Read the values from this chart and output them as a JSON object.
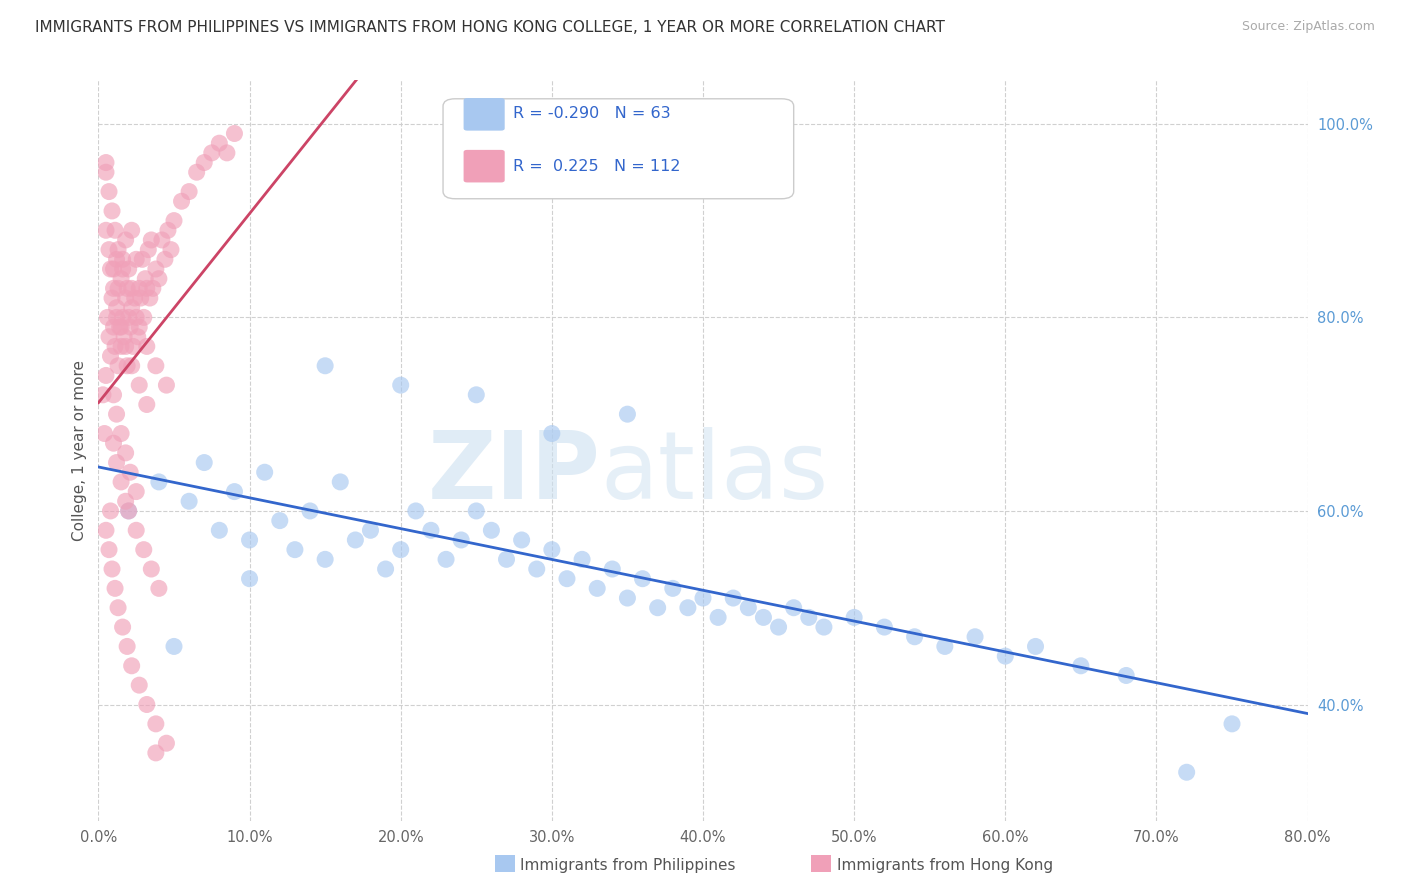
{
  "title": "IMMIGRANTS FROM PHILIPPINES VS IMMIGRANTS FROM HONG KONG COLLEGE, 1 YEAR OR MORE CORRELATION CHART",
  "source": "Source: ZipAtlas.com",
  "xlabel_blue": "Immigrants from Philippines",
  "xlabel_pink": "Immigrants from Hong Kong",
  "ylabel": "College, 1 year or more",
  "watermark_big": "ZIP",
  "watermark_small": "atlas",
  "blue_r": "-0.290",
  "blue_n": "63",
  "pink_r": "0.225",
  "pink_n": "112",
  "blue_color": "#a8c8f0",
  "pink_color": "#f0a0b8",
  "blue_line_color": "#3366cc",
  "pink_line_color": "#cc4466",
  "xlim": [
    0.0,
    0.8
  ],
  "ylim": [
    0.28,
    1.045
  ],
  "xticks": [
    0.0,
    0.1,
    0.2,
    0.3,
    0.4,
    0.5,
    0.6,
    0.7,
    0.8
  ],
  "yticks": [
    0.4,
    0.6,
    0.8,
    1.0
  ],
  "blue_x": [
    0.02,
    0.04,
    0.06,
    0.07,
    0.08,
    0.09,
    0.1,
    0.11,
    0.12,
    0.13,
    0.14,
    0.15,
    0.16,
    0.17,
    0.18,
    0.19,
    0.2,
    0.21,
    0.22,
    0.23,
    0.24,
    0.25,
    0.26,
    0.27,
    0.28,
    0.29,
    0.3,
    0.31,
    0.32,
    0.33,
    0.34,
    0.35,
    0.36,
    0.37,
    0.38,
    0.39,
    0.4,
    0.41,
    0.42,
    0.43,
    0.44,
    0.45,
    0.46,
    0.47,
    0.48,
    0.5,
    0.52,
    0.54,
    0.56,
    0.58,
    0.6,
    0.62,
    0.65,
    0.68,
    0.72,
    0.75,
    0.3,
    0.35,
    0.25,
    0.2,
    0.15,
    0.1,
    0.05
  ],
  "blue_y": [
    0.6,
    0.63,
    0.61,
    0.65,
    0.58,
    0.62,
    0.57,
    0.64,
    0.59,
    0.56,
    0.6,
    0.55,
    0.63,
    0.57,
    0.58,
    0.54,
    0.56,
    0.6,
    0.58,
    0.55,
    0.57,
    0.6,
    0.58,
    0.55,
    0.57,
    0.54,
    0.56,
    0.53,
    0.55,
    0.52,
    0.54,
    0.51,
    0.53,
    0.5,
    0.52,
    0.5,
    0.51,
    0.49,
    0.51,
    0.5,
    0.49,
    0.48,
    0.5,
    0.49,
    0.48,
    0.49,
    0.48,
    0.47,
    0.46,
    0.47,
    0.45,
    0.46,
    0.44,
    0.43,
    0.33,
    0.38,
    0.68,
    0.7,
    0.72,
    0.73,
    0.75,
    0.53,
    0.46
  ],
  "pink_x": [
    0.003,
    0.004,
    0.005,
    0.006,
    0.007,
    0.008,
    0.009,
    0.01,
    0.01,
    0.011,
    0.012,
    0.012,
    0.013,
    0.013,
    0.014,
    0.015,
    0.015,
    0.016,
    0.016,
    0.017,
    0.018,
    0.018,
    0.019,
    0.02,
    0.02,
    0.021,
    0.022,
    0.022,
    0.023,
    0.024,
    0.025,
    0.025,
    0.026,
    0.027,
    0.028,
    0.029,
    0.03,
    0.031,
    0.032,
    0.033,
    0.034,
    0.035,
    0.036,
    0.038,
    0.04,
    0.042,
    0.044,
    0.046,
    0.048,
    0.05,
    0.055,
    0.06,
    0.065,
    0.07,
    0.075,
    0.08,
    0.085,
    0.09,
    0.01,
    0.012,
    0.015,
    0.018,
    0.02,
    0.025,
    0.03,
    0.035,
    0.04,
    0.01,
    0.012,
    0.015,
    0.018,
    0.021,
    0.025,
    0.005,
    0.007,
    0.009,
    0.011,
    0.013,
    0.016,
    0.019,
    0.022,
    0.027,
    0.032,
    0.038,
    0.045,
    0.005,
    0.007,
    0.009,
    0.011,
    0.013,
    0.016,
    0.019,
    0.022,
    0.027,
    0.032,
    0.038,
    0.045,
    0.005,
    0.007,
    0.008,
    0.01,
    0.012,
    0.015,
    0.018,
    0.022,
    0.027,
    0.032,
    0.038,
    0.005,
    0.008
  ],
  "pink_y": [
    0.72,
    0.68,
    0.74,
    0.8,
    0.78,
    0.76,
    0.82,
    0.79,
    0.85,
    0.77,
    0.8,
    0.86,
    0.75,
    0.83,
    0.79,
    0.77,
    0.84,
    0.8,
    0.86,
    0.78,
    0.82,
    0.88,
    0.75,
    0.8,
    0.85,
    0.79,
    0.83,
    0.89,
    0.77,
    0.82,
    0.8,
    0.86,
    0.78,
    0.83,
    0.82,
    0.86,
    0.8,
    0.84,
    0.83,
    0.87,
    0.82,
    0.88,
    0.83,
    0.85,
    0.84,
    0.88,
    0.86,
    0.89,
    0.87,
    0.9,
    0.92,
    0.93,
    0.95,
    0.96,
    0.97,
    0.98,
    0.97,
    0.99,
    0.67,
    0.65,
    0.63,
    0.61,
    0.6,
    0.58,
    0.56,
    0.54,
    0.52,
    0.72,
    0.7,
    0.68,
    0.66,
    0.64,
    0.62,
    0.58,
    0.56,
    0.54,
    0.52,
    0.5,
    0.48,
    0.46,
    0.44,
    0.42,
    0.4,
    0.38,
    0.36,
    0.95,
    0.93,
    0.91,
    0.89,
    0.87,
    0.85,
    0.83,
    0.81,
    0.79,
    0.77,
    0.75,
    0.73,
    0.89,
    0.87,
    0.85,
    0.83,
    0.81,
    0.79,
    0.77,
    0.75,
    0.73,
    0.71,
    0.35,
    0.96,
    0.6
  ]
}
